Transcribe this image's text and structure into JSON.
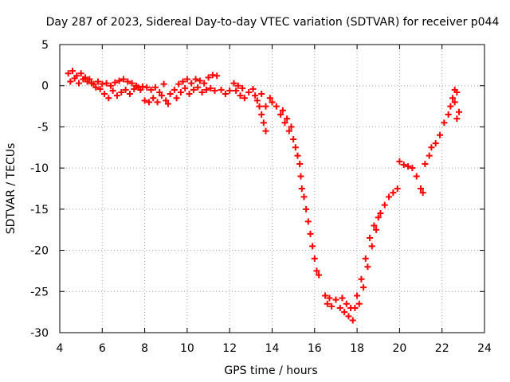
{
  "chart_data": {
    "type": "scatter",
    "title": "Day 287 of 2023, Sidereal Day-to-day VTEC variation (SDTVAR) for receiver p044",
    "xlabel": "GPS time / hours",
    "ylabel": "SDTVAR / TECUs",
    "xlim": [
      4,
      24
    ],
    "ylim": [
      -30,
      5
    ],
    "xticks": [
      4,
      6,
      8,
      10,
      12,
      14,
      16,
      18,
      20,
      22,
      24
    ],
    "yticks": [
      5,
      0,
      -5,
      -10,
      -15,
      -20,
      -25,
      -30
    ],
    "grid": true,
    "marker": "+",
    "colors": {
      "series": "#ff0000",
      "grid": "#a0a0a0",
      "axis": "#000000"
    },
    "series": [
      {
        "name": "SDTVAR",
        "points": [
          [
            4.4,
            1.5
          ],
          [
            4.5,
            0.5
          ],
          [
            4.6,
            1.8
          ],
          [
            4.7,
            0.9
          ],
          [
            4.8,
            1.2
          ],
          [
            4.9,
            0.3
          ],
          [
            5.0,
            1.5
          ],
          [
            5.1,
            0.8
          ],
          [
            5.2,
            1.0
          ],
          [
            5.3,
            0.5
          ],
          [
            5.4,
            0.8
          ],
          [
            5.5,
            0.3
          ],
          [
            5.6,
            0.2
          ],
          [
            5.7,
            -0.2
          ],
          [
            5.8,
            0.5
          ],
          [
            5.9,
            -0.4
          ],
          [
            6.0,
            0.2
          ],
          [
            6.1,
            -1.0
          ],
          [
            6.2,
            0.3
          ],
          [
            6.3,
            -1.5
          ],
          [
            6.4,
            0.0
          ],
          [
            6.5,
            -0.6
          ],
          [
            6.6,
            0.4
          ],
          [
            6.7,
            -1.2
          ],
          [
            6.8,
            0.6
          ],
          [
            6.9,
            -0.8
          ],
          [
            7.0,
            0.8
          ],
          [
            7.1,
            -0.5
          ],
          [
            7.2,
            0.5
          ],
          [
            7.3,
            -1.0
          ],
          [
            7.4,
            0.3
          ],
          [
            7.5,
            -0.4
          ],
          [
            7.6,
            0.0
          ],
          [
            7.7,
            -0.2
          ],
          [
            7.8,
            -0.5
          ],
          [
            7.9,
            -0.1
          ],
          [
            8.0,
            -1.8
          ],
          [
            8.1,
            -0.2
          ],
          [
            8.2,
            -2.0
          ],
          [
            8.3,
            -0.5
          ],
          [
            8.4,
            -1.5
          ],
          [
            8.5,
            -0.2
          ],
          [
            8.6,
            -2.0
          ],
          [
            8.7,
            -0.8
          ],
          [
            8.8,
            -1.2
          ],
          [
            8.9,
            0.2
          ],
          [
            9.0,
            -1.8
          ],
          [
            9.1,
            -2.2
          ],
          [
            9.2,
            -1.0
          ],
          [
            9.4,
            -0.5
          ],
          [
            9.5,
            -1.5
          ],
          [
            9.6,
            0.2
          ],
          [
            9.7,
            -0.8
          ],
          [
            9.8,
            0.5
          ],
          [
            9.9,
            -0.3
          ],
          [
            10.0,
            0.8
          ],
          [
            10.1,
            -1.0
          ],
          [
            10.2,
            0.3
          ],
          [
            10.3,
            -0.5
          ],
          [
            10.4,
            0.8
          ],
          [
            10.5,
            -0.2
          ],
          [
            10.6,
            0.6
          ],
          [
            10.7,
            -0.8
          ],
          [
            10.8,
            0.3
          ],
          [
            10.9,
            -0.5
          ],
          [
            11.0,
            1.0
          ],
          [
            11.1,
            -0.3
          ],
          [
            11.2,
            1.3
          ],
          [
            11.3,
            -0.6
          ],
          [
            11.4,
            1.2
          ],
          [
            11.6,
            -0.5
          ],
          [
            11.8,
            -1.0
          ],
          [
            12.0,
            -0.6
          ],
          [
            12.2,
            0.3
          ],
          [
            12.3,
            -0.6
          ],
          [
            12.4,
            0.0
          ],
          [
            12.5,
            -1.2
          ],
          [
            12.6,
            -0.3
          ],
          [
            12.7,
            -1.5
          ],
          [
            12.9,
            -0.8
          ],
          [
            13.1,
            -0.4
          ],
          [
            13.2,
            -1.2
          ],
          [
            13.3,
            -1.8
          ],
          [
            13.4,
            -2.5
          ],
          [
            13.5,
            -3.5
          ],
          [
            13.6,
            -4.5
          ],
          [
            13.7,
            -5.5
          ],
          [
            13.5,
            -1.0
          ],
          [
            13.7,
            -2.5
          ],
          [
            13.9,
            -1.5
          ],
          [
            14.0,
            -2.0
          ],
          [
            14.2,
            -2.5
          ],
          [
            14.4,
            -3.5
          ],
          [
            14.5,
            -3.0
          ],
          [
            14.6,
            -4.5
          ],
          [
            14.7,
            -4.0
          ],
          [
            14.8,
            -5.5
          ],
          [
            14.9,
            -5.0
          ],
          [
            15.0,
            -6.5
          ],
          [
            15.1,
            -7.5
          ],
          [
            15.2,
            -8.5
          ],
          [
            15.3,
            -9.5
          ],
          [
            15.35,
            -11.0
          ],
          [
            15.4,
            -12.5
          ],
          [
            15.5,
            -13.5
          ],
          [
            15.6,
            -15.0
          ],
          [
            15.7,
            -16.5
          ],
          [
            15.8,
            -18.0
          ],
          [
            15.9,
            -19.5
          ],
          [
            16.0,
            -21.0
          ],
          [
            16.1,
            -22.5
          ],
          [
            16.2,
            -23.0
          ],
          [
            16.5,
            -25.5
          ],
          [
            16.6,
            -26.5
          ],
          [
            16.7,
            -25.8
          ],
          [
            16.8,
            -26.8
          ],
          [
            17.0,
            -26.0
          ],
          [
            17.2,
            -27.0
          ],
          [
            17.3,
            -25.8
          ],
          [
            17.4,
            -27.5
          ],
          [
            17.5,
            -26.5
          ],
          [
            17.6,
            -28.0
          ],
          [
            17.7,
            -27.0
          ],
          [
            17.8,
            -28.5
          ],
          [
            17.9,
            -27.0
          ],
          [
            18.0,
            -25.5
          ],
          [
            18.1,
            -26.5
          ],
          [
            18.2,
            -23.5
          ],
          [
            18.3,
            -24.5
          ],
          [
            18.4,
            -21.0
          ],
          [
            18.5,
            -22.0
          ],
          [
            18.6,
            -18.5
          ],
          [
            18.7,
            -19.5
          ],
          [
            18.8,
            -17.0
          ],
          [
            18.9,
            -17.5
          ],
          [
            19.0,
            -16.0
          ],
          [
            19.1,
            -15.5
          ],
          [
            19.3,
            -14.5
          ],
          [
            19.5,
            -13.5
          ],
          [
            19.7,
            -13.0
          ],
          [
            19.9,
            -12.5
          ],
          [
            20.0,
            -9.2
          ],
          [
            20.2,
            -9.6
          ],
          [
            20.4,
            -9.8
          ],
          [
            20.6,
            -10.0
          ],
          [
            20.8,
            -11.0
          ],
          [
            21.0,
            -12.5
          ],
          [
            21.1,
            -13.0
          ],
          [
            21.2,
            -9.5
          ],
          [
            21.4,
            -8.5
          ],
          [
            21.5,
            -7.5
          ],
          [
            21.7,
            -7.0
          ],
          [
            21.9,
            -6.0
          ],
          [
            22.1,
            -4.5
          ],
          [
            22.3,
            -3.5
          ],
          [
            22.4,
            -2.5
          ],
          [
            22.5,
            -1.5
          ],
          [
            22.6,
            -2.0
          ],
          [
            22.6,
            -0.5
          ],
          [
            22.7,
            -0.8
          ],
          [
            22.7,
            -4.0
          ],
          [
            22.8,
            -3.2
          ]
        ]
      }
    ]
  }
}
